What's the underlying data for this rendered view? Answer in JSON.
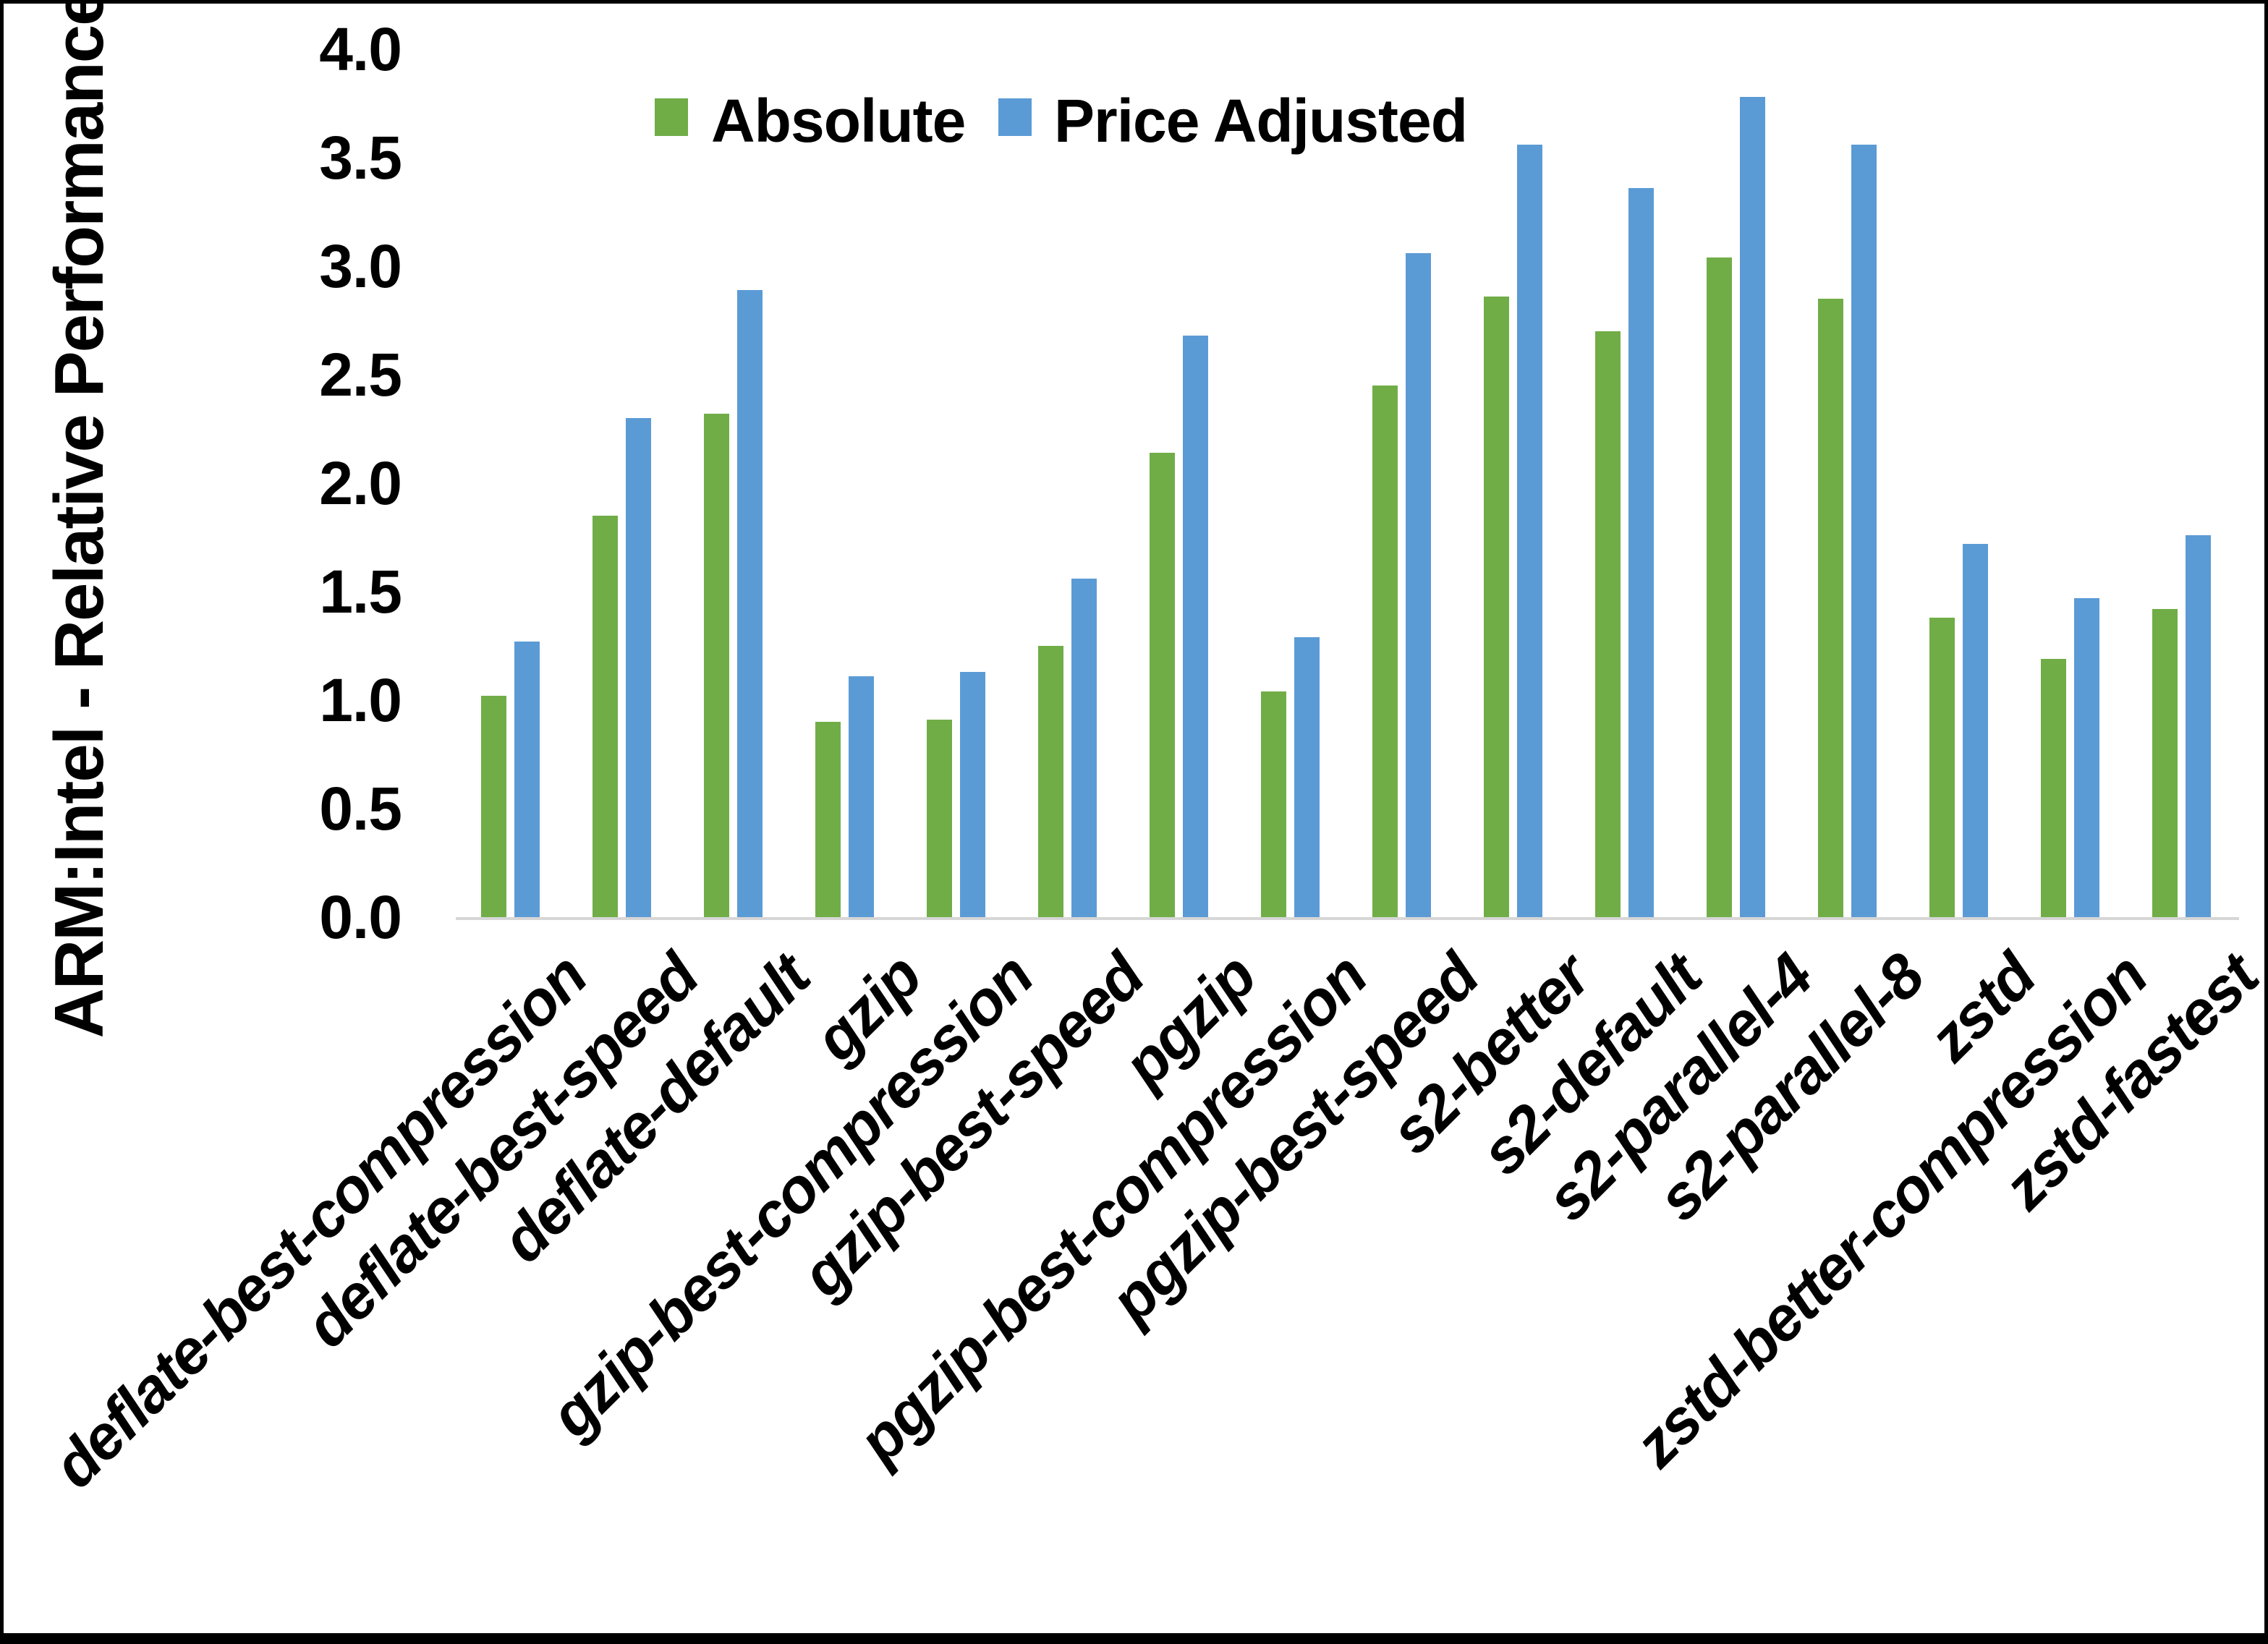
{
  "chart_data": {
    "type": "bar",
    "title": "",
    "xlabel": "",
    "ylabel": "ARM:Intel - Relative Performance",
    "ylim": [
      0.0,
      4.0
    ],
    "ytick_step": 0.5,
    "ytick_labels": [
      "0.0",
      "0.5",
      "1.0",
      "1.5",
      "2.0",
      "2.5",
      "3.0",
      "3.5",
      "4.0"
    ],
    "grid": false,
    "legend_position": "top-center",
    "categories": [
      "deflate-best-compression",
      "deflate-best-speed",
      "deflate-default",
      "gzip",
      "gzip-best-compression",
      "gzip-best-speed",
      "pgzip",
      "pgzip-best-compression",
      "pgzip-best-speed",
      "s2-better",
      "s2-default",
      "s2-parallel-4",
      "s2-parallel-8",
      "zstd",
      "zstd-better-compression",
      "zstd-fastest"
    ],
    "series": [
      {
        "name": "Absolute",
        "color": "#70AD47",
        "values": [
          1.02,
          1.85,
          2.32,
          0.9,
          0.91,
          1.25,
          2.14,
          1.04,
          2.45,
          2.86,
          2.7,
          3.04,
          2.85,
          1.38,
          1.19,
          1.42
        ]
      },
      {
        "name": "Price Adjusted",
        "color": "#5B9BD5",
        "values": [
          1.27,
          2.3,
          2.89,
          1.11,
          1.13,
          1.56,
          2.68,
          1.29,
          3.06,
          3.56,
          3.36,
          3.78,
          3.56,
          1.72,
          1.47,
          1.76
        ]
      }
    ]
  },
  "colors": {
    "background": "#FFFFFF",
    "border": "#000000",
    "axis_line": "#D6D6D6",
    "text": "#000000",
    "absolute_green": "#70AD47",
    "price_adjusted_blue": "#5B9BD5"
  }
}
